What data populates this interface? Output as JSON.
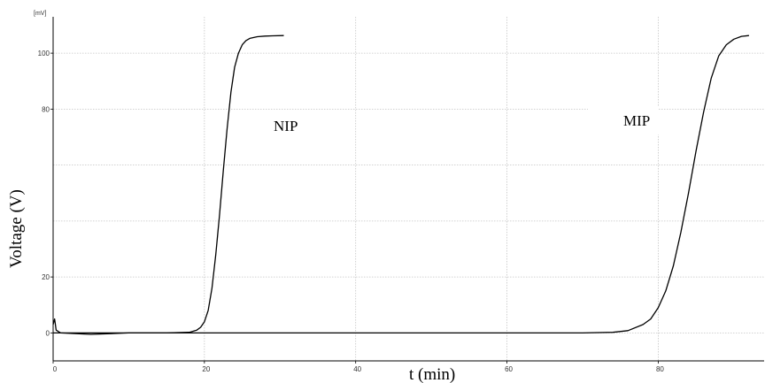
{
  "chart_data": {
    "type": "line",
    "title": "",
    "xlabel": "t (min)",
    "ylabel": "Voltage (V)",
    "y_unit_label": "[mV]",
    "xlim": [
      0,
      94
    ],
    "ylim": [
      -10,
      113
    ],
    "x_ticks": [
      0,
      20,
      40,
      60,
      80
    ],
    "y_ticks": [
      0,
      20,
      80,
      100
    ],
    "y_gridlines": [
      0,
      20,
      40,
      60,
      80,
      100
    ],
    "grid": true,
    "series": [
      {
        "name": "NIP",
        "x": [
          0,
          0.2,
          0.4,
          1,
          5,
          10,
          15,
          18,
          19,
          19.5,
          20,
          20.5,
          21,
          21.5,
          22,
          22.5,
          23,
          23.5,
          24,
          24.5,
          25,
          25.5,
          26,
          27,
          28,
          29,
          30.5
        ],
        "y": [
          3,
          5,
          1,
          0,
          -0.5,
          0,
          0,
          0.2,
          1,
          2,
          4,
          8,
          16,
          28,
          42,
          58,
          73,
          86,
          95,
          100,
          103,
          104.5,
          105.3,
          105.9,
          106.1,
          106.2,
          106.3
        ]
      },
      {
        "name": "MIP",
        "x": [
          0,
          70,
          74,
          76,
          78,
          79,
          80,
          81,
          82,
          83,
          84,
          85,
          86,
          87,
          88,
          89,
          90,
          91,
          92
        ],
        "y": [
          0,
          0,
          0.2,
          0.8,
          3,
          5,
          9,
          15,
          24,
          36,
          50,
          65,
          79,
          91,
          99,
          103,
          105,
          106,
          106.3
        ]
      }
    ],
    "labels": {
      "nip": "NIP",
      "mip": "MIP"
    }
  }
}
